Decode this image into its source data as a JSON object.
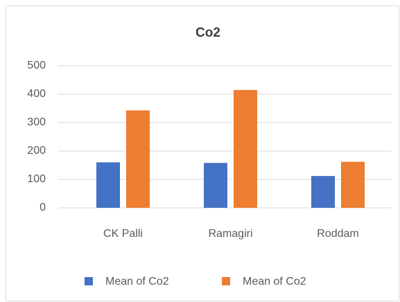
{
  "chart_data": {
    "type": "bar",
    "title": "Co2",
    "categories": [
      "CK Palli",
      "Ramagiri",
      "Roddam"
    ],
    "series": [
      {
        "name": "Mean of Co2",
        "color": "#4472c4",
        "values": [
          160,
          158,
          112
        ]
      },
      {
        "name": "Mean of Co2",
        "color": "#ed7d31",
        "values": [
          343,
          415,
          162
        ]
      }
    ],
    "ylim": [
      0,
      500
    ],
    "yticks": [
      0,
      100,
      200,
      300,
      400,
      500
    ],
    "grid": true,
    "legend": "bottom"
  }
}
